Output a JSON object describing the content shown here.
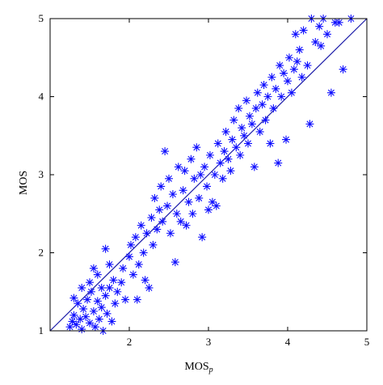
{
  "chart_data": {
    "type": "scatter",
    "title": "",
    "xlabel": "MOS",
    "xlabel_sub": "p",
    "ylabel": "MOS",
    "xlim": [
      1,
      5
    ],
    "ylim": [
      1,
      5
    ],
    "xticks": [
      2,
      3,
      4,
      5
    ],
    "yticks": [
      1,
      2,
      3,
      4,
      5
    ],
    "grid": false,
    "legend": "none",
    "marker": "asterisk",
    "marker_color": "#1010ff",
    "reference_line": {
      "from": [
        1,
        1
      ],
      "to": [
        5,
        5
      ],
      "color": "#1a1aa8"
    },
    "points": [
      [
        1.25,
        1.05
      ],
      [
        1.28,
        1.12
      ],
      [
        1.3,
        1.2
      ],
      [
        1.33,
        1.08
      ],
      [
        1.35,
        1.35
      ],
      [
        1.38,
        1.15
      ],
      [
        1.4,
        1.02
      ],
      [
        1.42,
        1.28
      ],
      [
        1.45,
        1.18
      ],
      [
        1.47,
        1.4
      ],
      [
        1.5,
        1.1
      ],
      [
        1.52,
        1.5
      ],
      [
        1.55,
        1.25
      ],
      [
        1.57,
        1.05
      ],
      [
        1.6,
        1.38
      ],
      [
        1.62,
        1.15
      ],
      [
        1.65,
        1.3
      ],
      [
        1.67,
        1.0
      ],
      [
        1.7,
        1.45
      ],
      [
        1.72,
        1.22
      ],
      [
        1.75,
        1.55
      ],
      [
        1.78,
        1.12
      ],
      [
        1.8,
        1.65
      ],
      [
        1.82,
        1.35
      ],
      [
        1.3,
        1.42
      ],
      [
        1.4,
        1.55
      ],
      [
        1.5,
        1.62
      ],
      [
        1.55,
        1.8
      ],
      [
        1.6,
        1.72
      ],
      [
        1.65,
        1.55
      ],
      [
        1.7,
        2.05
      ],
      [
        1.75,
        1.85
      ],
      [
        1.85,
        1.5
      ],
      [
        1.9,
        1.62
      ],
      [
        1.92,
        1.8
      ],
      [
        1.95,
        1.4
      ],
      [
        2.0,
        1.95
      ],
      [
        2.02,
        2.1
      ],
      [
        2.05,
        1.72
      ],
      [
        2.08,
        2.2
      ],
      [
        2.1,
        1.4
      ],
      [
        2.12,
        1.85
      ],
      [
        2.15,
        2.35
      ],
      [
        2.18,
        2.0
      ],
      [
        2.2,
        1.65
      ],
      [
        2.22,
        2.25
      ],
      [
        2.25,
        1.55
      ],
      [
        2.28,
        2.45
      ],
      [
        2.3,
        2.1
      ],
      [
        2.32,
        2.7
      ],
      [
        2.35,
        2.3
      ],
      [
        2.38,
        2.55
      ],
      [
        2.4,
        2.85
      ],
      [
        2.42,
        2.4
      ],
      [
        2.45,
        3.3
      ],
      [
        2.48,
        2.6
      ],
      [
        2.5,
        2.95
      ],
      [
        2.52,
        2.25
      ],
      [
        2.55,
        2.75
      ],
      [
        2.58,
        1.88
      ],
      [
        2.6,
        2.5
      ],
      [
        2.62,
        3.1
      ],
      [
        2.65,
        2.4
      ],
      [
        2.68,
        2.8
      ],
      [
        2.7,
        3.05
      ],
      [
        2.72,
        2.35
      ],
      [
        2.75,
        2.65
      ],
      [
        2.78,
        3.2
      ],
      [
        2.8,
        2.5
      ],
      [
        2.82,
        2.95
      ],
      [
        2.85,
        3.35
      ],
      [
        2.88,
        2.7
      ],
      [
        2.9,
        3.0
      ],
      [
        2.92,
        2.2
      ],
      [
        2.95,
        3.1
      ],
      [
        2.98,
        2.85
      ],
      [
        3.0,
        2.55
      ],
      [
        3.02,
        3.25
      ],
      [
        3.05,
        2.65
      ],
      [
        3.08,
        3.0
      ],
      [
        3.1,
        2.6
      ],
      [
        3.12,
        3.4
      ],
      [
        3.15,
        3.15
      ],
      [
        3.18,
        2.95
      ],
      [
        3.2,
        3.3
      ],
      [
        3.22,
        3.55
      ],
      [
        3.25,
        3.2
      ],
      [
        3.28,
        3.05
      ],
      [
        3.3,
        3.45
      ],
      [
        3.32,
        3.7
      ],
      [
        3.35,
        3.35
      ],
      [
        3.38,
        3.85
      ],
      [
        3.4,
        3.25
      ],
      [
        3.42,
        3.6
      ],
      [
        3.45,
        3.5
      ],
      [
        3.48,
        3.95
      ],
      [
        3.5,
        3.4
      ],
      [
        3.52,
        3.75
      ],
      [
        3.55,
        3.65
      ],
      [
        3.58,
        3.1
      ],
      [
        3.6,
        3.85
      ],
      [
        3.62,
        4.05
      ],
      [
        3.65,
        3.55
      ],
      [
        3.68,
        3.9
      ],
      [
        3.7,
        4.15
      ],
      [
        3.72,
        3.7
      ],
      [
        3.75,
        4.0
      ],
      [
        3.78,
        3.4
      ],
      [
        3.8,
        4.25
      ],
      [
        3.82,
        3.85
      ],
      [
        3.85,
        4.1
      ],
      [
        3.88,
        3.15
      ],
      [
        3.9,
        4.4
      ],
      [
        3.92,
        4.0
      ],
      [
        3.95,
        4.3
      ],
      [
        3.98,
        3.45
      ],
      [
        4.0,
        4.2
      ],
      [
        4.02,
        4.5
      ],
      [
        4.05,
        4.05
      ],
      [
        4.08,
        4.35
      ],
      [
        4.1,
        4.8
      ],
      [
        4.12,
        4.45
      ],
      [
        4.15,
        4.6
      ],
      [
        4.18,
        4.25
      ],
      [
        4.2,
        4.85
      ],
      [
        4.25,
        4.4
      ],
      [
        4.28,
        3.65
      ],
      [
        4.3,
        5.0
      ],
      [
        4.35,
        4.7
      ],
      [
        4.4,
        4.9
      ],
      [
        4.45,
        5.0
      ],
      [
        4.5,
        4.8
      ],
      [
        4.55,
        4.05
      ],
      [
        4.6,
        4.95
      ],
      [
        4.65,
        4.95
      ],
      [
        4.7,
        4.35
      ],
      [
        4.8,
        5.0
      ],
      [
        4.42,
        4.65
      ]
    ]
  }
}
